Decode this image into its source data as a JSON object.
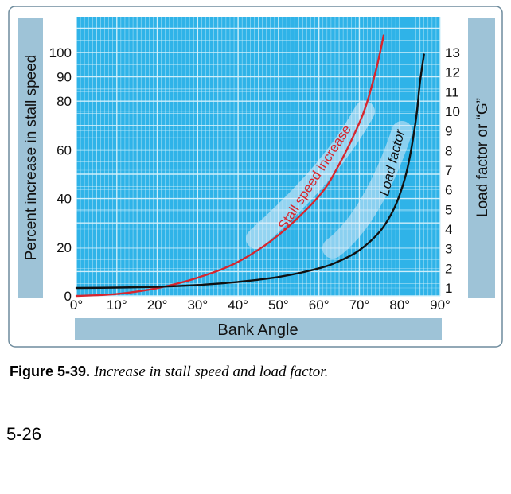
{
  "chart_data": {
    "type": "line",
    "xlabel": "Bank Angle",
    "ylabel_left": "Percent increase in stall speed",
    "ylabel_right": "Load factor or “G”",
    "x_ticks": [
      "0°",
      "10°",
      "20°",
      "30°",
      "40°",
      "50°",
      "60°",
      "70°",
      "80°",
      "90°"
    ],
    "y_left_ticks": [
      "0",
      "20",
      "40",
      "60",
      "80",
      "90",
      "100"
    ],
    "y_right_ticks": [
      "1",
      "2",
      "3",
      "4",
      "5",
      "6",
      "7",
      "8",
      "9",
      "10",
      "11",
      "12",
      "13"
    ],
    "xlim": [
      0,
      90
    ],
    "ylim_left": [
      0,
      110
    ],
    "ylim_right": [
      1,
      14
    ],
    "grid": true,
    "series": [
      {
        "name": "Stall speed increase",
        "axis": "left",
        "color": "#d7262e",
        "x": [
          0,
          10,
          20,
          30,
          40,
          50,
          60,
          65,
          70,
          72,
          74,
          75,
          76
        ],
        "y": [
          0,
          0.8,
          3.2,
          7.5,
          14,
          25,
          41,
          54,
          71,
          80,
          92,
          99,
          107
        ]
      },
      {
        "name": "Load factor",
        "axis": "right",
        "color": "#111111",
        "x": [
          0,
          10,
          20,
          30,
          40,
          50,
          60,
          65,
          70,
          75,
          78,
          80,
          82,
          84,
          85,
          86
        ],
        "y": [
          1,
          1.02,
          1.06,
          1.15,
          1.31,
          1.56,
          2.0,
          2.37,
          2.92,
          3.86,
          4.81,
          5.76,
          7.19,
          9.57,
          11.47,
          12.9
        ]
      }
    ]
  },
  "caption": {
    "label": "Figure 5-39.",
    "text": "Increase in stall speed and load factor."
  },
  "page_number": "5-26",
  "colors": {
    "plot_bg": "#2fb3e8",
    "grid": "#d6f1fb",
    "label_band": "#9ec3d7",
    "panel_border": "#6f8c9d",
    "stall_curve": "#d7262e",
    "load_curve": "#111111"
  }
}
